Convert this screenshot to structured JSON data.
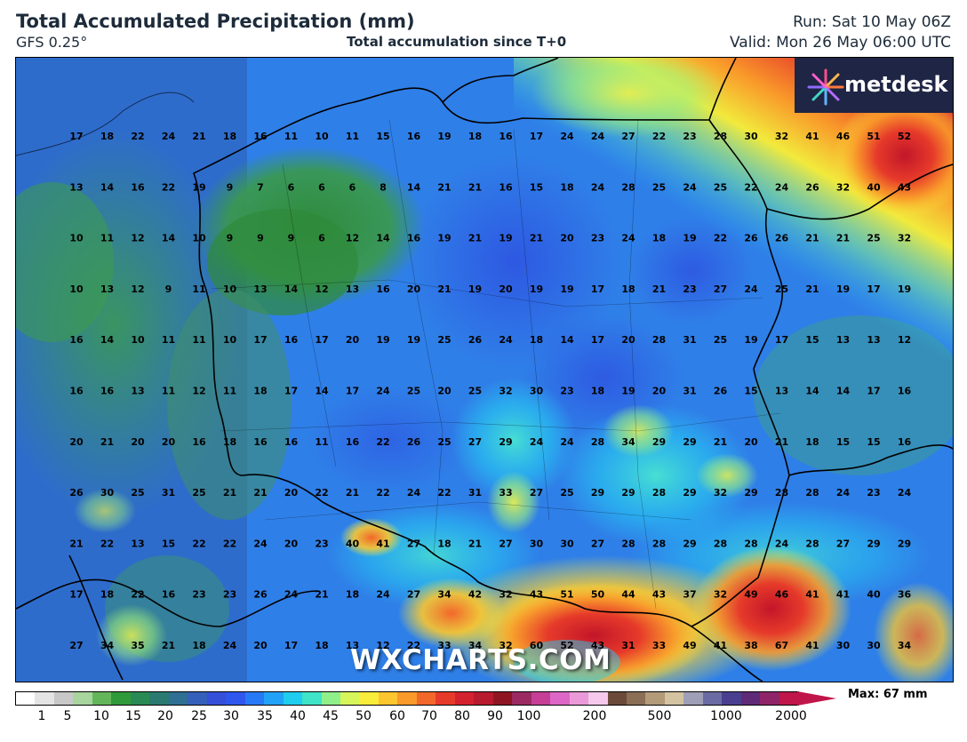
{
  "header": {
    "title": "Total Accumulated Precipitation (mm)",
    "model": "GFS 0.25°",
    "subtitle": "Total accumulation since T+0",
    "run": "Run: Sat 10 May 06Z",
    "valid": "Valid: Mon 26 May 06:00 UTC"
  },
  "logo": {
    "text": "metdesk"
  },
  "watermark": "WXCHARTS.COM",
  "legend": {
    "ticks": [
      "1",
      "5",
      "10",
      "15",
      "20",
      "25",
      "30",
      "35",
      "40",
      "45",
      "50",
      "60",
      "70",
      "80",
      "90",
      "100",
      "200",
      "500",
      "1000",
      "2000"
    ],
    "max_label": "Max: 67 mm"
  },
  "grid_values": [
    [
      "17",
      "18",
      "22",
      "24",
      "21",
      "18",
      "16",
      "11",
      "10",
      "11",
      "15",
      "16",
      "19",
      "18",
      "16",
      "17",
      "24",
      "24",
      "27",
      "22",
      "23",
      "28",
      "30",
      "32",
      "41",
      "46",
      "51",
      "52"
    ],
    [
      "13",
      "14",
      "16",
      "22",
      "19",
      "9",
      "7",
      "6",
      "6",
      "6",
      "8",
      "14",
      "21",
      "21",
      "16",
      "15",
      "18",
      "24",
      "28",
      "25",
      "24",
      "25",
      "22",
      "24",
      "26",
      "32",
      "40",
      "43"
    ],
    [
      "10",
      "11",
      "12",
      "14",
      "10",
      "9",
      "9",
      "9",
      "6",
      "12",
      "14",
      "16",
      "19",
      "21",
      "19",
      "21",
      "20",
      "23",
      "24",
      "18",
      "19",
      "22",
      "26",
      "26",
      "21",
      "21",
      "25",
      "32"
    ],
    [
      "10",
      "13",
      "12",
      "9",
      "11",
      "10",
      "13",
      "14",
      "12",
      "13",
      "16",
      "20",
      "21",
      "19",
      "20",
      "19",
      "19",
      "17",
      "18",
      "21",
      "23",
      "27",
      "24",
      "25",
      "21",
      "19",
      "17",
      "19"
    ],
    [
      "16",
      "14",
      "10",
      "11",
      "11",
      "10",
      "17",
      "16",
      "17",
      "20",
      "19",
      "19",
      "25",
      "26",
      "24",
      "18",
      "14",
      "17",
      "20",
      "28",
      "31",
      "25",
      "19",
      "17",
      "15",
      "13",
      "13",
      "12"
    ],
    [
      "16",
      "16",
      "13",
      "11",
      "12",
      "11",
      "18",
      "17",
      "14",
      "17",
      "24",
      "25",
      "20",
      "25",
      "32",
      "30",
      "23",
      "18",
      "19",
      "20",
      "31",
      "26",
      "15",
      "13",
      "14",
      "14",
      "17",
      "16"
    ],
    [
      "20",
      "21",
      "20",
      "20",
      "16",
      "18",
      "16",
      "16",
      "11",
      "16",
      "22",
      "26",
      "25",
      "27",
      "29",
      "24",
      "24",
      "28",
      "34",
      "29",
      "29",
      "21",
      "20",
      "21",
      "18",
      "15",
      "15",
      "16"
    ],
    [
      "26",
      "30",
      "25",
      "31",
      "25",
      "21",
      "21",
      "20",
      "22",
      "21",
      "22",
      "24",
      "22",
      "31",
      "33",
      "27",
      "25",
      "29",
      "29",
      "28",
      "29",
      "32",
      "29",
      "28",
      "28",
      "24",
      "23",
      "24"
    ],
    [
      "21",
      "22",
      "13",
      "15",
      "22",
      "22",
      "24",
      "20",
      "23",
      "40",
      "41",
      "27",
      "18",
      "21",
      "27",
      "30",
      "30",
      "27",
      "28",
      "28",
      "29",
      "28",
      "28",
      "24",
      "28",
      "27",
      "29",
      "29"
    ],
    [
      "17",
      "18",
      "22",
      "16",
      "23",
      "23",
      "26",
      "24",
      "21",
      "18",
      "24",
      "27",
      "34",
      "42",
      "32",
      "43",
      "51",
      "50",
      "44",
      "43",
      "37",
      "32",
      "49",
      "46",
      "41",
      "41",
      "40",
      "36"
    ],
    [
      "27",
      "34",
      "35",
      "21",
      "18",
      "24",
      "20",
      "17",
      "18",
      "13",
      "12",
      "22",
      "33",
      "34",
      "32",
      "60",
      "52",
      "43",
      "31",
      "33",
      "49",
      "41",
      "38",
      "67",
      "41",
      "30",
      "30",
      "34"
    ]
  ],
  "colors": {
    "scale": [
      "#ffffff",
      "#e4e4e4",
      "#c8c8c8",
      "#a7d59d",
      "#63b75a",
      "#2f9a3a",
      "#2a8a55",
      "#2a7a72",
      "#2f6f93",
      "#3460b9",
      "#3550d8",
      "#2f57ee",
      "#2879f5",
      "#22a2f7",
      "#1fcdef",
      "#3fe3c7",
      "#8ff08a",
      "#d6f55a",
      "#f9ec3a",
      "#fbc62f",
      "#f99a2a",
      "#f2672a",
      "#e63a2a",
      "#d4222f",
      "#b81a2e",
      "#8f1522",
      "#9c2a62",
      "#c53f97",
      "#dd67c6",
      "#eb9ad9",
      "#f5c9ec",
      "#6b4a3a",
      "#8a6e55",
      "#b39a78",
      "#d3c3a0",
      "#9f9fb7",
      "#6b6ba3",
      "#4a3f8f",
      "#5f2a78",
      "#8f2468",
      "#c0154a"
    ],
    "brand_bg": "#1f2544"
  }
}
